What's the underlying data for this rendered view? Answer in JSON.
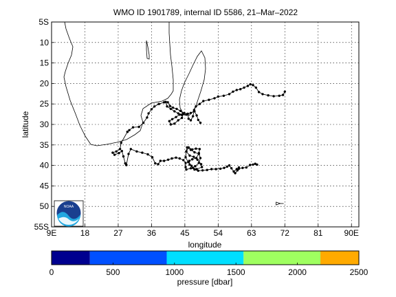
{
  "title": "WMO ID 1901789, internal ID 5586, 21–Mar–2022",
  "map": {
    "xlabel": "longitude",
    "ylabel": "latitude",
    "lon_range": [
      9,
      92
    ],
    "lat_range": [
      -55,
      -5
    ],
    "x_ticks": [
      {
        "value": 9,
        "label": "9E"
      },
      {
        "value": 18,
        "label": "18"
      },
      {
        "value": 27,
        "label": "27"
      },
      {
        "value": 36,
        "label": "36"
      },
      {
        "value": 45,
        "label": "45"
      },
      {
        "value": 54,
        "label": "54"
      },
      {
        "value": 63,
        "label": "63"
      },
      {
        "value": 72,
        "label": "72"
      },
      {
        "value": 81,
        "label": "81"
      },
      {
        "value": 90,
        "label": "90E"
      }
    ],
    "y_ticks": [
      {
        "value": -5,
        "label": "5S"
      },
      {
        "value": -10,
        "label": "10"
      },
      {
        "value": -15,
        "label": "15"
      },
      {
        "value": -20,
        "label": "20"
      },
      {
        "value": -25,
        "label": "25"
      },
      {
        "value": -30,
        "label": "30"
      },
      {
        "value": -35,
        "label": "35"
      },
      {
        "value": -40,
        "label": "40"
      },
      {
        "value": -45,
        "label": "45"
      },
      {
        "value": -50,
        "label": "50"
      },
      {
        "value": -55,
        "label": "55S"
      }
    ],
    "grid": true,
    "logo_text": "NOAA",
    "colors": {
      "track": "#000000",
      "coast": "#000000",
      "grid": "#000000"
    }
  },
  "chart_data": {
    "type": "scatter",
    "title": "WMO ID 1901789, internal ID 5586, 21–Mar–2022",
    "xlabel": "longitude",
    "ylabel": "latitude",
    "xlim": [
      9,
      92
    ],
    "ylim": [
      -55,
      -5
    ],
    "float_track": [
      [
        72.0,
        -22.0
      ],
      [
        71.5,
        -22.8
      ],
      [
        70.5,
        -23.0
      ],
      [
        69.0,
        -23.1
      ],
      [
        67.5,
        -22.9
      ],
      [
        66.0,
        -22.6
      ],
      [
        65.0,
        -22.1
      ],
      [
        64.2,
        -21.0
      ],
      [
        63.4,
        -20.4
      ],
      [
        62.7,
        -20.2
      ],
      [
        62.0,
        -20.6
      ],
      [
        61.0,
        -21.0
      ],
      [
        60.0,
        -21.4
      ],
      [
        59.0,
        -21.6
      ],
      [
        58.0,
        -22.0
      ],
      [
        57.0,
        -22.6
      ],
      [
        55.5,
        -23.0
      ],
      [
        54.0,
        -23.2
      ],
      [
        53.0,
        -23.6
      ],
      [
        51.5,
        -24.0
      ],
      [
        50.0,
        -24.3
      ],
      [
        49.0,
        -25.0
      ],
      [
        48.0,
        -25.6
      ],
      [
        47.5,
        -26.5
      ],
      [
        47.2,
        -28.0
      ],
      [
        46.6,
        -29.0
      ],
      [
        46.0,
        -28.6
      ],
      [
        45.8,
        -27.4
      ],
      [
        44.8,
        -27.2
      ],
      [
        43.6,
        -27.6
      ],
      [
        42.6,
        -28.2
      ],
      [
        41.6,
        -28.7
      ],
      [
        40.8,
        -29.2
      ],
      [
        41.2,
        -30.0
      ],
      [
        42.2,
        -29.8
      ],
      [
        43.2,
        -29.0
      ],
      [
        44.2,
        -28.4
      ],
      [
        44.6,
        -27.4
      ],
      [
        43.8,
        -26.7
      ],
      [
        42.8,
        -26.2
      ],
      [
        41.8,
        -25.9
      ],
      [
        41.0,
        -25.5
      ],
      [
        40.4,
        -24.6
      ],
      [
        39.8,
        -24.5
      ],
      [
        40.2,
        -25.6
      ],
      [
        41.2,
        -26.2
      ],
      [
        42.2,
        -26.8
      ],
      [
        43.2,
        -27.3
      ],
      [
        44.2,
        -27.7
      ],
      [
        45.4,
        -27.6
      ],
      [
        46.6,
        -27.2
      ],
      [
        47.6,
        -26.8
      ],
      [
        48.2,
        -27.8
      ],
      [
        48.6,
        -28.9
      ],
      [
        49.2,
        -29.6
      ]
    ],
    "gap_track": [
      [
        29.5,
        -31.8
      ],
      [
        27.8,
        -34.5
      ],
      [
        27.5,
        -36.0
      ],
      [
        26.5,
        -36.6
      ],
      [
        25.5,
        -36.9
      ],
      [
        26.0,
        -37.4
      ],
      [
        27.2,
        -37.0
      ],
      [
        28.0,
        -36.5
      ],
      [
        28.4,
        -37.8
      ],
      [
        28.9,
        -39.5
      ],
      [
        29.2,
        -39.9
      ]
    ],
    "south_track": [
      [
        29.2,
        -39.9
      ],
      [
        29.8,
        -37.2
      ],
      [
        30.4,
        -36.0
      ],
      [
        32.0,
        -36.6
      ],
      [
        33.5,
        -36.9
      ],
      [
        35.0,
        -37.3
      ],
      [
        36.2,
        -38.0
      ],
      [
        37.0,
        -39.5
      ],
      [
        37.8,
        -39.7
      ],
      [
        38.4,
        -38.9
      ],
      [
        39.4,
        -38.9
      ],
      [
        40.5,
        -38.6
      ],
      [
        41.5,
        -38.3
      ],
      [
        42.6,
        -38.1
      ],
      [
        43.6,
        -38.3
      ],
      [
        44.6,
        -38.7
      ],
      [
        45.2,
        -39.4
      ],
      [
        45.2,
        -40.4
      ],
      [
        45.4,
        -41.0
      ],
      [
        46.6,
        -40.7
      ],
      [
        47.8,
        -40.2
      ],
      [
        48.8,
        -39.4
      ],
      [
        49.2,
        -38.2
      ],
      [
        48.8,
        -37.2
      ],
      [
        47.6,
        -36.8
      ],
      [
        46.6,
        -36.2
      ],
      [
        45.6,
        -35.6
      ],
      [
        45.4,
        -36.6
      ],
      [
        46.3,
        -37.6
      ],
      [
        47.4,
        -37.9
      ],
      [
        48.4,
        -38.6
      ],
      [
        49.4,
        -39.7
      ],
      [
        49.6,
        -40.4
      ],
      [
        48.2,
        -40.9
      ],
      [
        47.2,
        -40.6
      ],
      [
        46.3,
        -39.8
      ],
      [
        46.2,
        -38.9
      ],
      [
        47.0,
        -38.5
      ],
      [
        48.1,
        -38.2
      ],
      [
        48.8,
        -37.0
      ],
      [
        49.0,
        -36.0
      ],
      [
        48.0,
        -35.9
      ],
      [
        47.0,
        -36.1
      ],
      [
        46.0,
        -35.6
      ],
      [
        45.4,
        -36.6
      ],
      [
        45.2,
        -38.0
      ],
      [
        45.9,
        -39.2
      ],
      [
        46.8,
        -40.1
      ],
      [
        47.6,
        -41.0
      ],
      [
        48.6,
        -41.3
      ],
      [
        49.8,
        -41.2
      ],
      [
        51.0,
        -41.1
      ],
      [
        52.2,
        -40.9
      ],
      [
        53.4,
        -40.9
      ],
      [
        54.6,
        -40.8
      ],
      [
        55.6,
        -40.6
      ],
      [
        56.4,
        -40.3
      ],
      [
        57.0,
        -40.0
      ],
      [
        57.6,
        -40.7
      ],
      [
        58.2,
        -41.5
      ],
      [
        59.0,
        -40.9
      ],
      [
        59.6,
        -40.5
      ],
      [
        59.2,
        -41.2
      ],
      [
        58.6,
        -41.9
      ],
      [
        59.6,
        -40.8
      ],
      [
        60.6,
        -40.6
      ],
      [
        61.6,
        -40.5
      ],
      [
        62.6,
        -39.9
      ],
      [
        63.4,
        -39.8
      ],
      [
        64.0,
        -39.6
      ],
      [
        64.5,
        -39.8
      ]
    ],
    "west_track": [
      [
        39.4,
        -24.6
      ],
      [
        38.0,
        -25.0
      ],
      [
        36.8,
        -25.6
      ],
      [
        36.0,
        -26.3
      ],
      [
        35.2,
        -27.3
      ],
      [
        34.8,
        -28.3
      ],
      [
        33.8,
        -29.6
      ],
      [
        32.6,
        -30.6
      ],
      [
        31.0,
        -30.7
      ],
      [
        30.0,
        -31.4
      ],
      [
        29.5,
        -31.8
      ]
    ],
    "marker": {
      "lon": 70.2,
      "lat": -49.3
    }
  },
  "colorbar": {
    "label": "pressure [dbar]",
    "min": 0,
    "max": 2500,
    "ticks": [
      {
        "value": 0,
        "label": "0"
      },
      {
        "value": 500,
        "label": "500"
      },
      {
        "value": 1000,
        "label": "1000"
      },
      {
        "value": 1500,
        "label": "1500"
      },
      {
        "value": 2000,
        "label": "2000"
      },
      {
        "value": 2500,
        "label": "2500"
      }
    ],
    "segments": [
      {
        "from": 0,
        "to": 312,
        "color": "#00008f"
      },
      {
        "from": 312,
        "to": 937,
        "color": "#0050ff"
      },
      {
        "from": 937,
        "to": 1562,
        "color": "#00dfff"
      },
      {
        "from": 1562,
        "to": 2187,
        "color": "#9fff60"
      },
      {
        "from": 2187,
        "to": 2500,
        "color": "#ffaa00"
      }
    ]
  }
}
